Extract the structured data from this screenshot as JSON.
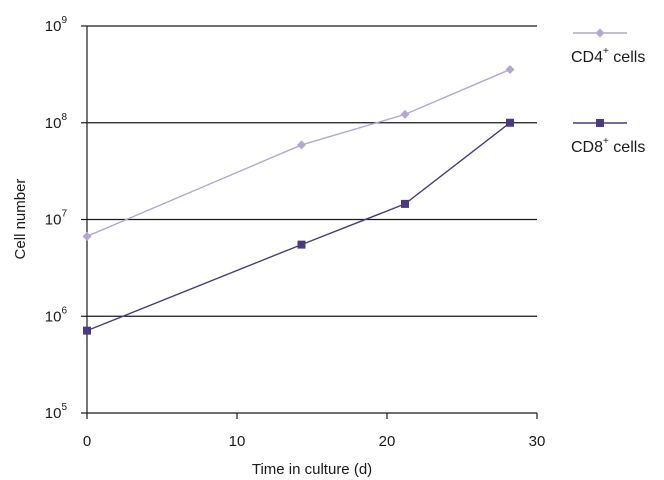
{
  "chart_data": {
    "type": "line",
    "xlabel": "Time in culture (d)",
    "ylabel": "Cell number",
    "x_ticks": [
      "0",
      "10",
      "20",
      "30"
    ],
    "y_ticks": [
      {
        "base": "10",
        "exp": "5"
      },
      {
        "base": "10",
        "exp": "6"
      },
      {
        "base": "10",
        "exp": "7"
      },
      {
        "base": "10",
        "exp": "8"
      },
      {
        "base": "10",
        "exp": "9"
      }
    ],
    "xlim": [
      0,
      30
    ],
    "ylim": [
      100000,
      1000000000
    ],
    "y_scale": "log",
    "grid": "horizontal lines at 10^6, 10^7, 10^8",
    "legend_position": "right",
    "series": [
      {
        "name": "CD4",
        "name_sup": "+",
        "name_suffix": " cells",
        "color": "#b3a8cc",
        "marker": "diamond",
        "points": [
          {
            "x": 0,
            "y": 6700000
          },
          {
            "x": 14.3,
            "y": 59000000
          },
          {
            "x": 21.2,
            "y": 122000000
          },
          {
            "x": 28.2,
            "y": 355000000
          }
        ]
      },
      {
        "name": "CD8",
        "name_sup": "+",
        "name_suffix": " cells",
        "color": "#4b3a7d",
        "marker": "square",
        "points": [
          {
            "x": 0,
            "y": 710000
          },
          {
            "x": 14.3,
            "y": 5500000
          },
          {
            "x": 21.2,
            "y": 14500000
          },
          {
            "x": 28.2,
            "y": 100000000
          }
        ]
      }
    ]
  }
}
